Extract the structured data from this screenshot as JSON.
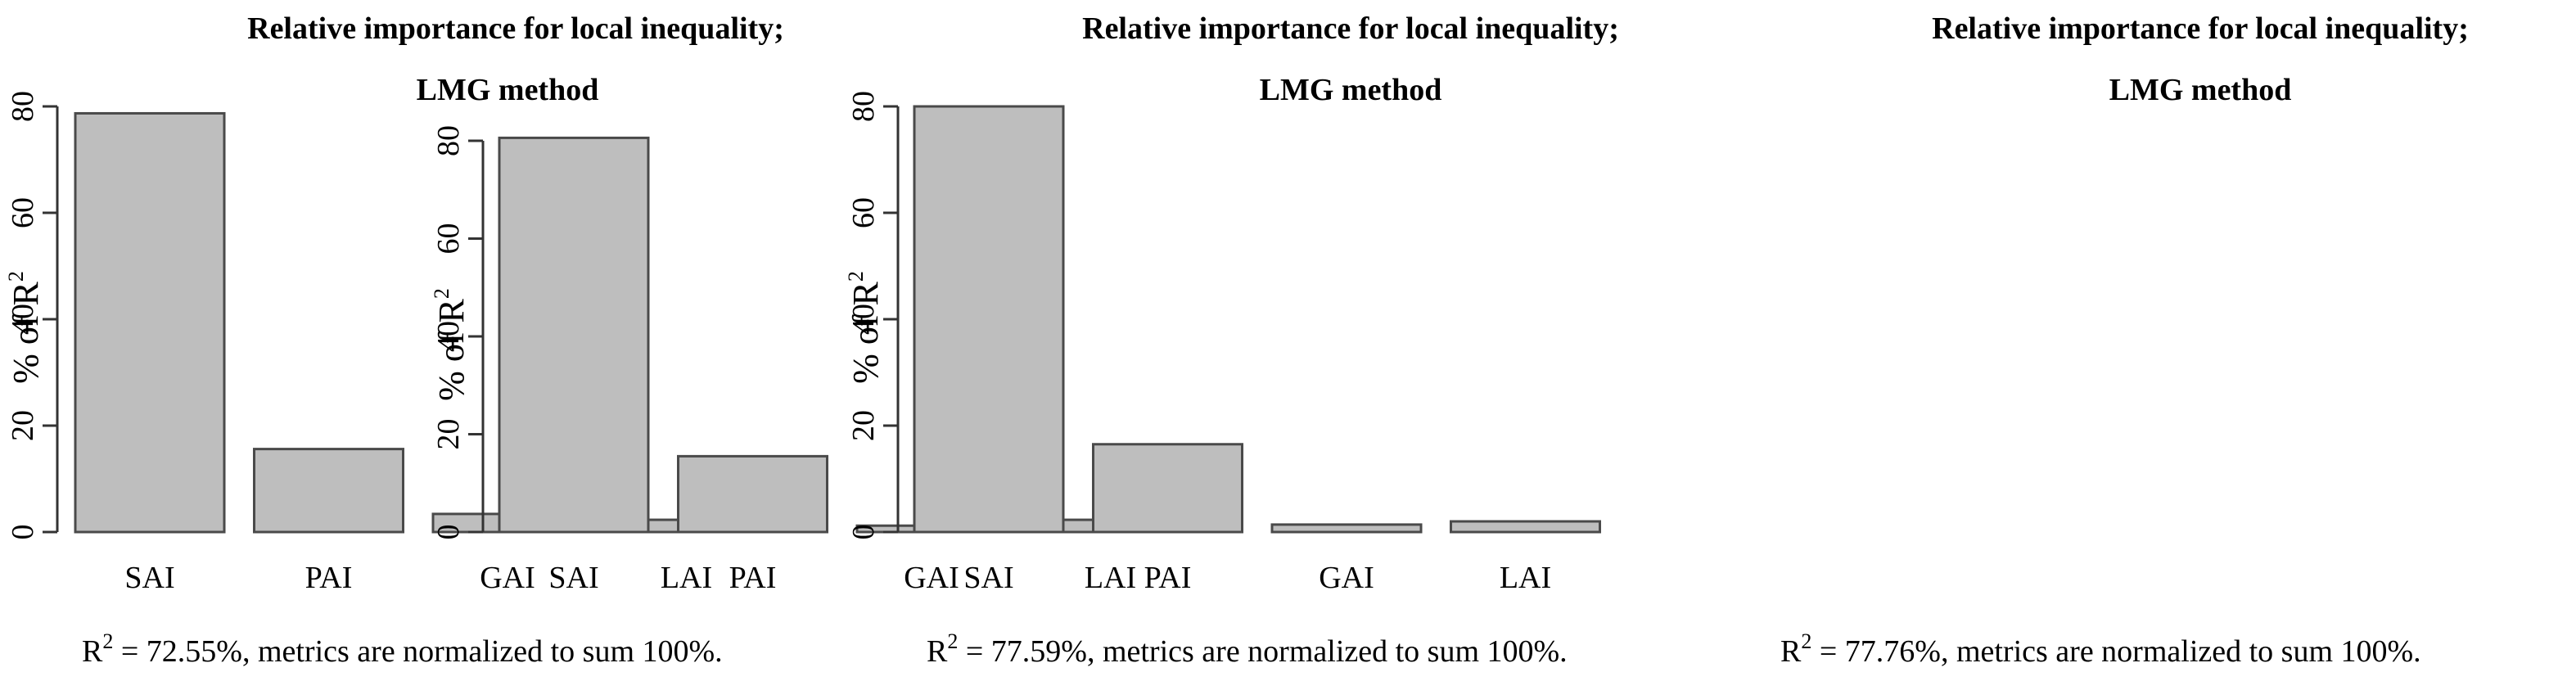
{
  "chart_data": [
    {
      "type": "bar",
      "title_line1": "Relative importance for local inequality;",
      "title_line2": "LMG method",
      "ylabel_prefix": "% of R",
      "ylabel_sup": "2",
      "categories": [
        "SAI",
        "PAI",
        "GAI",
        "LAI"
      ],
      "values": [
        78.7,
        15.6,
        3.4,
        2.3
      ],
      "ylim": [
        0,
        80
      ],
      "yticks": [
        "0",
        "20",
        "40",
        "60",
        "80"
      ],
      "footnote_prefix": "R",
      "footnote_sup": "2",
      "footnote_text": " = 72.55%, metrics are normalized to sum 100%."
    },
    {
      "type": "bar",
      "title_line1": "Relative importance for local inequality;",
      "title_line2": "LMG method",
      "ylabel_prefix": "% of R",
      "ylabel_sup": "2",
      "categories": [
        "SAI",
        "PAI",
        "GAI",
        "LAI"
      ],
      "values": [
        80.6,
        15.5,
        1.3,
        2.5
      ],
      "ylim": [
        0,
        80
      ],
      "yticks": [
        "0",
        "20",
        "40",
        "60",
        "80"
      ],
      "footnote_prefix": "R",
      "footnote_sup": "2",
      "footnote_text": " = 77.59%, metrics are normalized to sum 100%."
    },
    {
      "type": "bar",
      "title_line1": "Relative importance for local inequality;",
      "title_line2": "LMG method",
      "ylabel_prefix": "% of R",
      "ylabel_sup": "2",
      "categories": [
        "SAI",
        "PAI",
        "GAI",
        "LAI"
      ],
      "values": [
        80.0,
        16.5,
        1.4,
        2.0
      ],
      "ylim": [
        0,
        80
      ],
      "yticks": [
        "0",
        "20",
        "40",
        "60",
        "80"
      ],
      "footnote_prefix": "R",
      "footnote_sup": "2",
      "footnote_text": " = 77.76%, metrics are normalized to sum 100%."
    }
  ]
}
